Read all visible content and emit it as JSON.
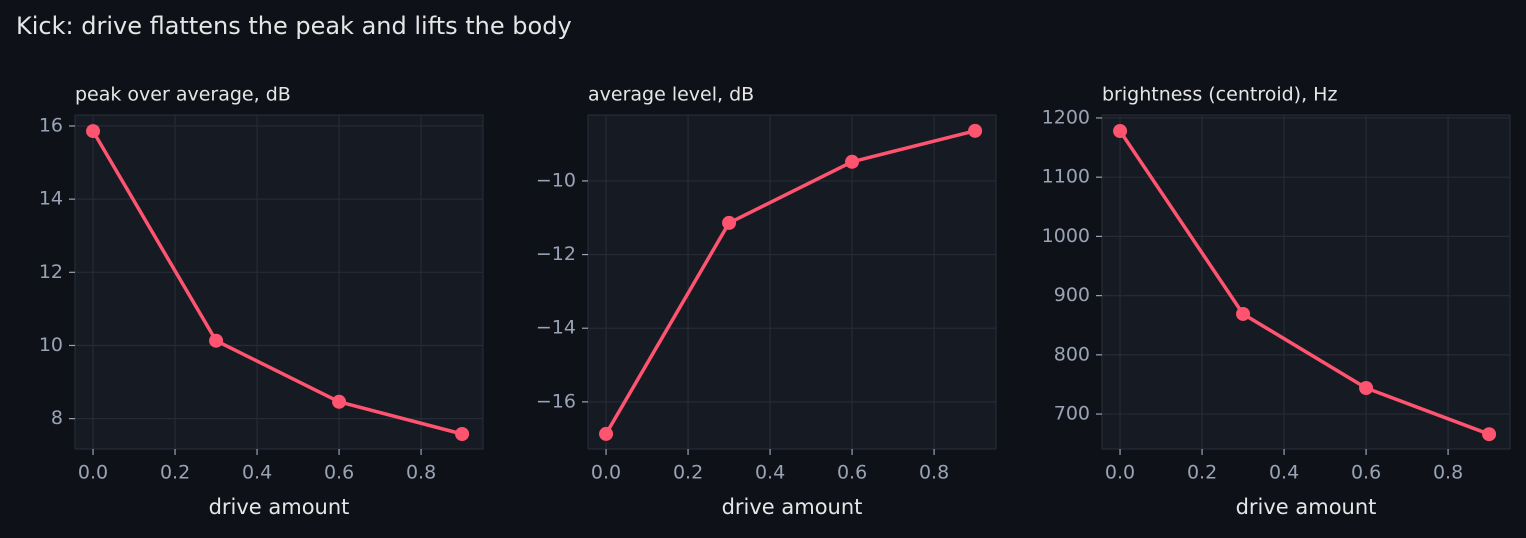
{
  "title": "Kick: drive flattens the peak and lifts the body",
  "chart_data": [
    {
      "type": "line",
      "title": "peak over average, dB",
      "x_label": "drive amount",
      "x": [
        0,
        0.3,
        0.6,
        0.9
      ],
      "values": [
        15.86,
        10.13,
        8.46,
        7.58
      ],
      "color": "#ff5470",
      "xlim": [
        -0.044,
        0.951
      ],
      "ylim": [
        7.17,
        16.3
      ],
      "xticks": [
        {
          "value": 0,
          "label": "0.0"
        },
        {
          "value": 0.2,
          "label": "0.2"
        },
        {
          "value": 0.4,
          "label": "0.4"
        },
        {
          "value": 0.6,
          "label": "0.6"
        },
        {
          "value": 0.8,
          "label": "0.8"
        }
      ],
      "yticks": [
        8,
        10,
        12,
        14,
        16
      ],
      "grid": true
    },
    {
      "type": "line",
      "title": "average level, dB",
      "x_label": "drive amount",
      "x": [
        0,
        0.3,
        0.6,
        0.9
      ],
      "values": [
        -16.87,
        -11.14,
        -9.48,
        -8.64
      ],
      "color": "#ff5470",
      "xlim": [
        -0.044,
        0.951
      ],
      "ylim": [
        -17.28,
        -8.21
      ],
      "xticks": [
        {
          "value": 0,
          "label": "0.0"
        },
        {
          "value": 0.2,
          "label": "0.2"
        },
        {
          "value": 0.4,
          "label": "0.4"
        },
        {
          "value": 0.6,
          "label": "0.6"
        },
        {
          "value": 0.8,
          "label": "0.8"
        }
      ],
      "yticks": [
        {
          "value": -16,
          "label": "−16"
        },
        {
          "value": -14,
          "label": "−14"
        },
        {
          "value": -12,
          "label": "−12"
        },
        {
          "value": -10,
          "label": "−10"
        }
      ],
      "grid": true
    },
    {
      "type": "line",
      "title": "brightness (centroid), Hz",
      "x_label": "drive amount",
      "x": [
        0,
        0.3,
        0.6,
        0.9
      ],
      "values": [
        1178,
        869,
        744,
        666
      ],
      "color": "#ff5470",
      "xlim": [
        -0.044,
        0.951
      ],
      "ylim": [
        641,
        1205
      ],
      "xticks": [
        {
          "value": 0,
          "label": "0.0"
        },
        {
          "value": 0.2,
          "label": "0.2"
        },
        {
          "value": 0.4,
          "label": "0.4"
        },
        {
          "value": 0.6,
          "label": "0.6"
        },
        {
          "value": 0.8,
          "label": "0.8"
        }
      ],
      "yticks": [
        700,
        800,
        900,
        1000,
        1100,
        1200
      ],
      "grid": true
    }
  ]
}
